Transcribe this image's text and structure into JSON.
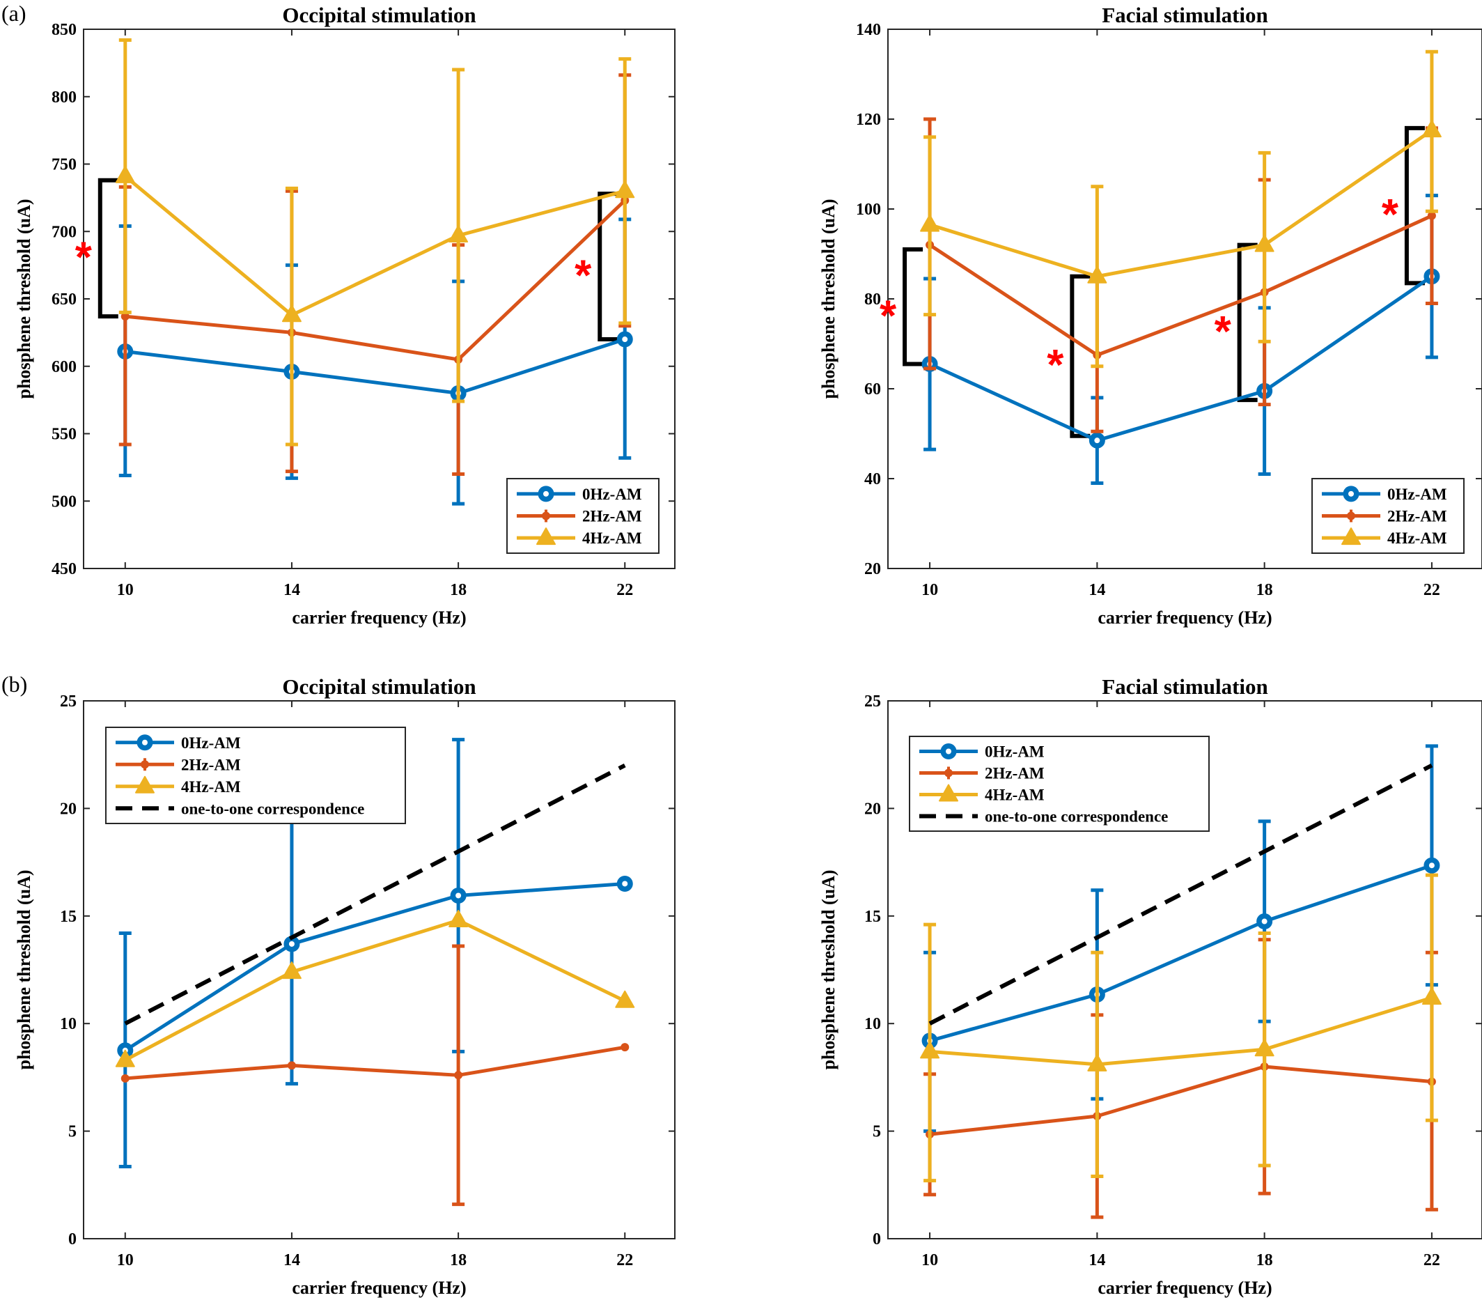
{
  "figure": {
    "panel_labels": [
      "(a)",
      "(b)"
    ]
  },
  "colors": {
    "0Hz-AM": "#0072BD",
    "2Hz-AM": "#D95319",
    "4Hz-AM": "#EDB120",
    "one-to-one correspondence": "#000000",
    "significance": "#ff0000"
  },
  "chart_data": [
    {
      "type": "line",
      "panel": "(a)",
      "title": "Occipital stimulation",
      "xlabel": "carrier frequency (Hz)",
      "ylabel": "phosphene threshold (uA)",
      "x": [
        10,
        14,
        18,
        22
      ],
      "xlim": [
        9,
        23.2
      ],
      "ylim": [
        450,
        850
      ],
      "yticks": [
        450,
        500,
        550,
        600,
        650,
        700,
        750,
        800,
        850
      ],
      "legend_position": "bottom-right",
      "series": [
        {
          "name": "0Hz-AM",
          "marker": "circle",
          "values": [
            611,
            596,
            580,
            620
          ],
          "err_low": [
            519,
            517,
            498,
            532
          ],
          "err_high": [
            704,
            675,
            663,
            709
          ]
        },
        {
          "name": "2Hz-AM",
          "marker": "dot",
          "values": [
            637,
            625,
            605,
            723
          ],
          "err_low": [
            542,
            522,
            520,
            630
          ],
          "err_high": [
            733,
            730,
            690,
            816
          ]
        },
        {
          "name": "4Hz-AM",
          "marker": "triangle",
          "values": [
            741,
            638,
            697,
            730
          ],
          "err_low": [
            640,
            542,
            574,
            632
          ],
          "err_high": [
            842,
            732,
            820,
            828
          ]
        }
      ],
      "annotations": [
        {
          "text": "*",
          "bracket_x": 10,
          "y_range": [
            637,
            738
          ]
        },
        {
          "text": "*",
          "bracket_x": 22,
          "y_range": [
            620,
            728
          ]
        }
      ]
    },
    {
      "type": "line",
      "panel": "(a)",
      "title": "Facial stimulation",
      "xlabel": "carrier frequency (Hz)",
      "ylabel": "phosphene threshold (uA)",
      "x": [
        10,
        14,
        18,
        22
      ],
      "xlim": [
        9,
        23.2
      ],
      "ylim": [
        20,
        140
      ],
      "yticks": [
        20,
        40,
        60,
        80,
        100,
        120,
        140
      ],
      "legend_position": "bottom-right",
      "series": [
        {
          "name": "0Hz-AM",
          "marker": "circle",
          "values": [
            65.5,
            48.5,
            59.5,
            85
          ],
          "err_low": [
            46.5,
            39,
            41,
            67
          ],
          "err_high": [
            84.5,
            58,
            78,
            103
          ]
        },
        {
          "name": "2Hz-AM",
          "marker": "dot",
          "values": [
            92,
            67.5,
            81.5,
            98.5
          ],
          "err_low": [
            64.5,
            50.5,
            56.5,
            79
          ],
          "err_high": [
            120,
            84.5,
            106.5,
            118
          ]
        },
        {
          "name": "4Hz-AM",
          "marker": "triangle",
          "values": [
            96.5,
            85,
            92,
            117.5
          ],
          "err_low": [
            76.5,
            65,
            70.5,
            99.5
          ],
          "err_high": [
            116,
            105,
            112.5,
            135
          ]
        }
      ],
      "annotations": [
        {
          "text": "*",
          "bracket_x": 10,
          "y_range": [
            65.5,
            91
          ]
        },
        {
          "text": "*",
          "bracket_x": 14,
          "y_range": [
            49.5,
            85
          ]
        },
        {
          "text": "*",
          "bracket_x": 18,
          "y_range": [
            57.5,
            92
          ]
        },
        {
          "text": "*",
          "bracket_x": 22,
          "y_range": [
            83.5,
            118
          ]
        }
      ]
    },
    {
      "type": "line",
      "panel": "(b)",
      "title": "Occipital stimulation",
      "xlabel": "carrier frequency (Hz)",
      "ylabel": "phosphene threshold (uA)",
      "x": [
        10,
        14,
        18,
        22
      ],
      "xlim": [
        9,
        23.2
      ],
      "ylim": [
        0,
        25
      ],
      "yticks": [
        0,
        5,
        10,
        15,
        20,
        25
      ],
      "legend_position": "top-left",
      "series": [
        {
          "name": "0Hz-AM",
          "marker": "circle",
          "values": [
            8.75,
            13.7,
            15.95,
            16.5
          ],
          "err_low": [
            3.35,
            7.2,
            8.7,
            16.5
          ],
          "err_high": [
            14.2,
            19.4,
            23.2,
            16.5
          ]
        },
        {
          "name": "2Hz-AM",
          "marker": "dot",
          "values": [
            7.45,
            8.05,
            7.6,
            8.9
          ],
          "err_low": [
            7.45,
            8.05,
            1.6,
            8.9
          ],
          "err_high": [
            7.45,
            8.05,
            13.6,
            8.9
          ]
        },
        {
          "name": "4Hz-AM",
          "marker": "triangle",
          "values": [
            8.3,
            12.4,
            14.8,
            11.05
          ],
          "err_low": [
            8.3,
            12.4,
            14.8,
            11.05
          ],
          "err_high": [
            8.3,
            12.4,
            14.8,
            11.05
          ]
        },
        {
          "name": "one-to-one correspondence",
          "style": "dashed",
          "values": [
            10,
            14,
            18,
            22
          ]
        }
      ]
    },
    {
      "type": "line",
      "panel": "(b)",
      "title": "Facial stimulation",
      "xlabel": "carrier frequency (Hz)",
      "ylabel": "phosphene threshold (uA)",
      "x": [
        10,
        14,
        18,
        22
      ],
      "xlim": [
        9,
        23.2
      ],
      "ylim": [
        0,
        25
      ],
      "yticks": [
        0,
        5,
        10,
        15,
        20,
        25
      ],
      "legend_position": "top-left",
      "series": [
        {
          "name": "0Hz-AM",
          "marker": "circle",
          "values": [
            9.2,
            11.35,
            14.75,
            17.35
          ],
          "err_low": [
            5.0,
            6.5,
            10.1,
            11.8
          ],
          "err_high": [
            13.3,
            16.2,
            19.4,
            22.9
          ]
        },
        {
          "name": "2Hz-AM",
          "marker": "dot",
          "values": [
            4.85,
            5.7,
            8.0,
            7.3
          ],
          "err_low": [
            2.05,
            1.0,
            2.1,
            1.35
          ],
          "err_high": [
            7.65,
            10.4,
            13.9,
            13.3
          ]
        },
        {
          "name": "4Hz-AM",
          "marker": "triangle",
          "values": [
            8.7,
            8.1,
            8.8,
            11.2
          ],
          "err_low": [
            2.7,
            2.9,
            3.4,
            5.5
          ],
          "err_high": [
            14.6,
            13.3,
            14.2,
            16.9
          ]
        },
        {
          "name": "one-to-one correspondence",
          "style": "dashed",
          "values": [
            10,
            14,
            18,
            22
          ]
        }
      ]
    }
  ]
}
